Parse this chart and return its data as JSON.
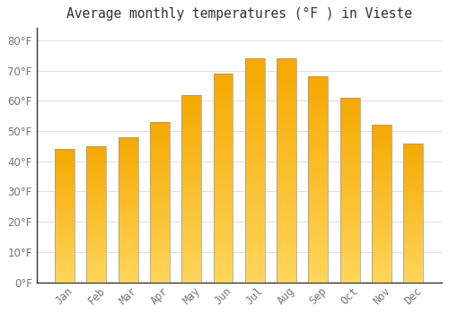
{
  "title": "Average monthly temperatures (°F ) in Vieste",
  "months": [
    "Jan",
    "Feb",
    "Mar",
    "Apr",
    "May",
    "Jun",
    "Jul",
    "Aug",
    "Sep",
    "Oct",
    "Nov",
    "Dec"
  ],
  "values": [
    44,
    45,
    48,
    53,
    62,
    69,
    74,
    74,
    68,
    61,
    52,
    46
  ],
  "bar_color_dark": "#F5A800",
  "bar_color_light": "#FFD55A",
  "bar_edge_color": "#999999",
  "background_color": "#FFFFFF",
  "grid_color": "#E0E0E0",
  "text_color": "#777777",
  "title_color": "#333333",
  "ylim": [
    0,
    84
  ],
  "yticks": [
    0,
    10,
    20,
    30,
    40,
    50,
    60,
    70,
    80
  ],
  "title_fontsize": 10.5,
  "tick_fontsize": 8.5
}
